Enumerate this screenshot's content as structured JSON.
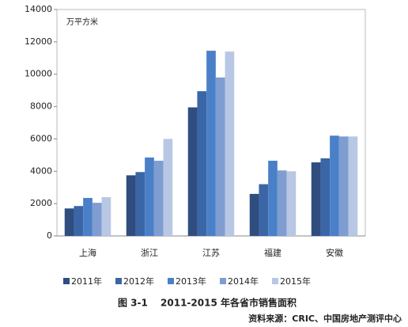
{
  "chart_data": {
    "type": "bar",
    "title": "图 3-1　 2011-2015 年各省市销售面积",
    "source": "资料来源：CRIC、中国房地产测评中心",
    "y_unit": "万平方米",
    "categories": [
      "上海",
      "浙江",
      "江苏",
      "福建",
      "安徽"
    ],
    "series": [
      {
        "name": "2011年",
        "color": "#2f4e7f",
        "values": [
          1700,
          3750,
          7950,
          2600,
          4550
        ]
      },
      {
        "name": "2012年",
        "color": "#3b66a6",
        "values": [
          1850,
          3950,
          8950,
          3200,
          4800
        ]
      },
      {
        "name": "2013年",
        "color": "#4a80c8",
        "values": [
          2350,
          4850,
          11450,
          4650,
          6200
        ]
      },
      {
        "name": "2014年",
        "color": "#7f9dd1",
        "values": [
          2050,
          4650,
          9800,
          4050,
          6150
        ]
      },
      {
        "name": "2015年",
        "color": "#b8c7e4",
        "values": [
          2400,
          6000,
          11400,
          4000,
          6150
        ]
      }
    ],
    "ylim": [
      0,
      14000
    ],
    "yticks": [
      0,
      2000,
      4000,
      6000,
      8000,
      10000,
      12000,
      14000
    ],
    "legend": "bottom"
  }
}
